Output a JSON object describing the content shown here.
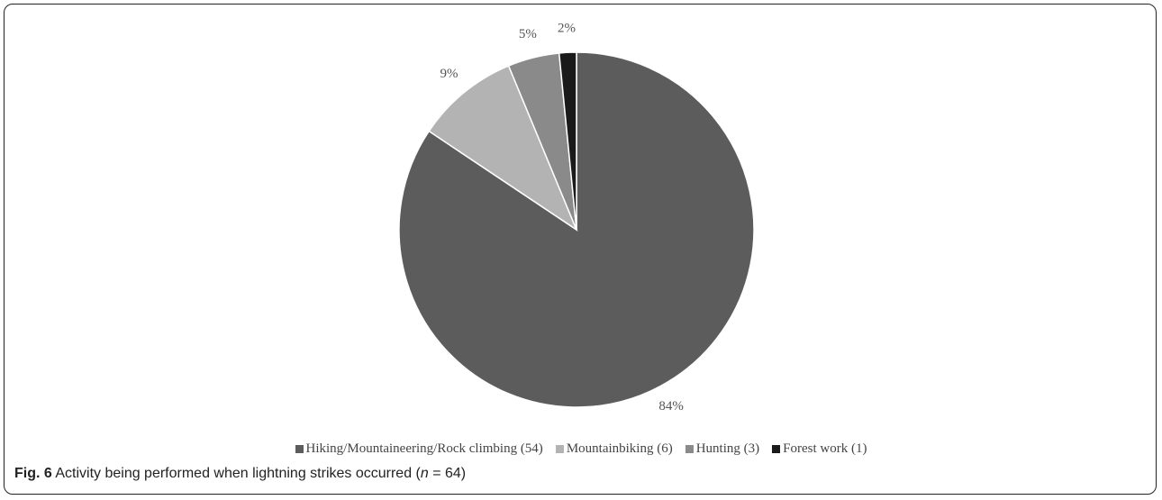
{
  "chart_data": {
    "type": "pie",
    "categories": [
      "Hiking/Mountaineering/Rock climbing (54)",
      "Mountainbiking (6)",
      "Hunting (3)",
      "Forest work (1)"
    ],
    "values": [
      54,
      6,
      3,
      1
    ],
    "percent_labels": [
      "84%",
      "9%",
      "5%",
      "2%"
    ],
    "colors": [
      "#5c5c5c",
      "#b3b3b3",
      "#8a8a8a",
      "#1a1a1a"
    ],
    "start_angle": "12 o'clock",
    "direction": "clockwise",
    "legend": {
      "position": "bottom",
      "entries": [
        "Hiking/Mountaineering/Rock climbing (54)",
        "Mountainbiking (6)",
        "Hunting (3)",
        "Forest work (1)"
      ]
    }
  },
  "caption": {
    "fig_label": "Fig. 6",
    "text_before": "Activity being performed when lightning strikes occurred (",
    "n_symbol": "n",
    "text_after": " = 64)"
  }
}
